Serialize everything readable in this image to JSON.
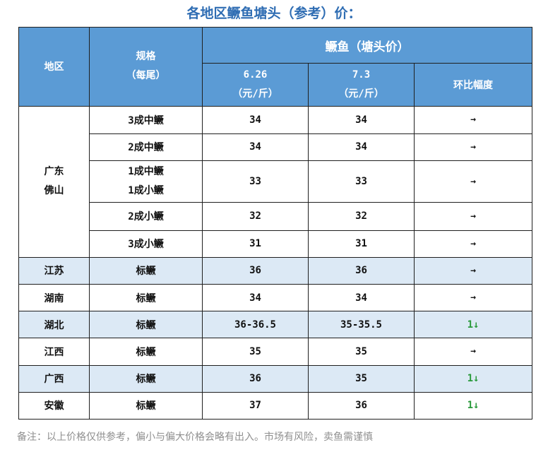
{
  "title": "各地区鳜鱼塘头（参考）价：",
  "header": {
    "region": "地区",
    "spec_line1": "规格",
    "spec_line2": "（每尾）",
    "group": "鳜鱼（塘头价）",
    "date1": "6.26",
    "date2": "7.3",
    "unit": "（元/斤）",
    "change": "环比幅度"
  },
  "foshan": {
    "region_line1": "广东",
    "region_line2": "佛山",
    "rows": [
      {
        "spec": "3成中鳜",
        "p1": "34",
        "p2": "34",
        "change": "→"
      },
      {
        "spec": "2成中鳜",
        "p1": "34",
        "p2": "34",
        "change": "→"
      },
      {
        "spec_line1": "1成中鳜",
        "spec_line2": "1成小鳜",
        "p1": "33",
        "p2": "33",
        "change": "→"
      },
      {
        "spec": "2成小鳜",
        "p1": "32",
        "p2": "32",
        "change": "→"
      },
      {
        "spec": "3成小鳜",
        "p1": "31",
        "p2": "31",
        "change": "→"
      }
    ]
  },
  "regions": [
    {
      "region": "江苏",
      "spec": "标鳜",
      "p1": "36",
      "p2": "36",
      "change": "→"
    },
    {
      "region": "湖南",
      "spec": "标鳜",
      "p1": "34",
      "p2": "34",
      "change": "→"
    },
    {
      "region": "湖北",
      "spec": "标鳜",
      "p1": "36-36.5",
      "p2": "35-35.5",
      "change_num": "1",
      "change_arrow": "↓"
    },
    {
      "region": "江西",
      "spec": "标鳜",
      "p1": "35",
      "p2": "35",
      "change": "→"
    },
    {
      "region": "广西",
      "spec": "标鳜",
      "p1": "36",
      "p2": "35",
      "change_num": "1",
      "change_arrow": "↓"
    },
    {
      "region": "安徽",
      "spec": "标鳜",
      "p1": "37",
      "p2": "36",
      "change_num": "1",
      "change_arrow": "↓"
    }
  ],
  "note": "备注：以上价格仅供参考，偏小与偏大价格会略有出入。市场有风险，卖鱼需谨慎",
  "colors": {
    "header_bg": "#5b9bd5",
    "title": "#2f6db3",
    "shade": "#dce9f5",
    "down": "#2a9a3c"
  }
}
